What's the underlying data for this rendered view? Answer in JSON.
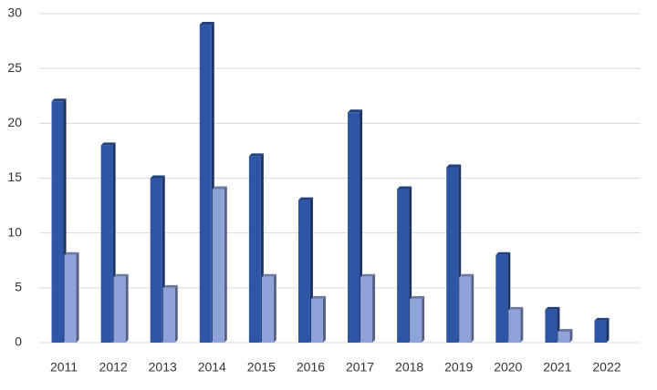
{
  "chart_data": {
    "type": "bar",
    "categories": [
      "2011",
      "2012",
      "2013",
      "2014",
      "2015",
      "2016",
      "2017",
      "2018",
      "2019",
      "2020",
      "2021",
      "2022"
    ],
    "series": [
      {
        "color": "#2f56a6",
        "values": [
          22,
          18,
          15,
          29,
          17,
          13,
          21,
          14,
          16,
          8,
          3,
          2
        ]
      },
      {
        "color": "#8fa2da",
        "values": [
          8,
          6,
          5,
          14,
          6,
          4,
          6,
          4,
          6,
          3,
          1,
          0
        ]
      }
    ],
    "ylim": [
      0,
      30
    ],
    "yticks": [
      0,
      5,
      10,
      15,
      20,
      25,
      30
    ],
    "grid": true
  }
}
